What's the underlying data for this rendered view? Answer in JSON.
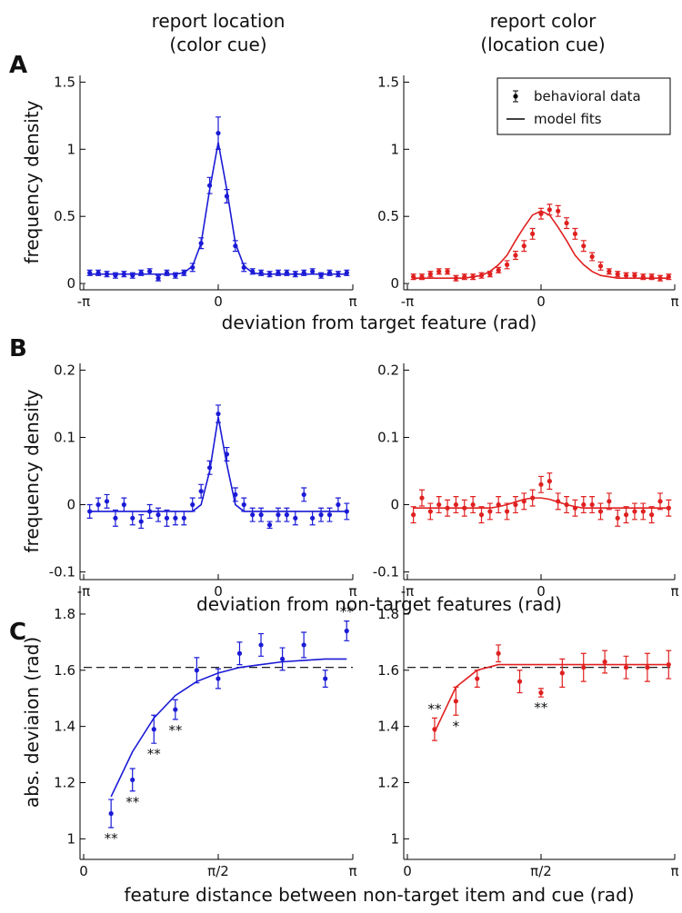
{
  "figure": {
    "column_titles": [
      [
        "report location",
        "(color cue)"
      ],
      [
        "report color",
        "(location cue)"
      ]
    ],
    "rows": [
      {
        "label": "A",
        "xlabel": "deviation from target feature (rad)"
      },
      {
        "label": "B",
        "xlabel": "deviation from non-target features (rad)"
      },
      {
        "label": "C",
        "xlabel": "feature distance between non-target item and cue (rad)"
      }
    ]
  },
  "chart_data": [
    {
      "type": "errorbar",
      "ylabel": "frequency density",
      "x": [
        -3.0,
        -2.8,
        -2.6,
        -2.4,
        -2.2,
        -2.0,
        -1.8,
        -1.6,
        -1.4,
        -1.2,
        -1.0,
        -0.8,
        -0.6,
        -0.4,
        -0.2,
        0,
        0.2,
        0.4,
        0.6,
        0.8,
        1.0,
        1.2,
        1.4,
        1.6,
        1.8,
        2.0,
        2.2,
        2.4,
        2.6,
        2.8,
        3.0
      ],
      "xlim": [
        -3.14159,
        3.14159
      ],
      "xticks": [
        {
          "value": -3.14159,
          "label": "-π"
        },
        0,
        {
          "value": 3.14159,
          "label": "π"
        }
      ],
      "ylim": [
        -0.04,
        1.55
      ],
      "yticks": [
        0,
        0.5,
        1,
        1.5
      ],
      "series": [
        {
          "name": "behavioral data",
          "color": "#1a1ad6",
          "values": [
            0.08,
            0.08,
            0.07,
            0.06,
            0.07,
            0.06,
            0.08,
            0.09,
            0.04,
            0.08,
            0.06,
            0.08,
            0.12,
            0.3,
            0.73,
            1.12,
            0.65,
            0.28,
            0.12,
            0.09,
            0.08,
            0.07,
            0.08,
            0.08,
            0.07,
            0.08,
            0.09,
            0.06,
            0.08,
            0.07,
            0.08
          ],
          "errors": [
            0.02,
            0.02,
            0.02,
            0.02,
            0.02,
            0.02,
            0.02,
            0.02,
            0.02,
            0.02,
            0.02,
            0.02,
            0.03,
            0.04,
            0.06,
            0.12,
            0.05,
            0.04,
            0.03,
            0.02,
            0.02,
            0.02,
            0.02,
            0.02,
            0.02,
            0.02,
            0.02,
            0.02,
            0.02,
            0.02,
            0.02
          ]
        },
        {
          "name": "model fits",
          "color": "#1a1ad6",
          "values": [
            0.07,
            0.07,
            0.07,
            0.07,
            0.07,
            0.07,
            0.07,
            0.07,
            0.07,
            0.07,
            0.07,
            0.08,
            0.13,
            0.3,
            0.7,
            1.05,
            0.7,
            0.3,
            0.13,
            0.08,
            0.07,
            0.07,
            0.07,
            0.07,
            0.07,
            0.07,
            0.07,
            0.07,
            0.07,
            0.07,
            0.07
          ]
        }
      ]
    },
    {
      "type": "errorbar",
      "legend": "upper right",
      "x": [
        -3.0,
        -2.8,
        -2.6,
        -2.4,
        -2.2,
        -2.0,
        -1.8,
        -1.6,
        -1.4,
        -1.2,
        -1.0,
        -0.8,
        -0.6,
        -0.4,
        -0.2,
        0,
        0.2,
        0.4,
        0.6,
        0.8,
        1.0,
        1.2,
        1.4,
        1.6,
        1.8,
        2.0,
        2.2,
        2.4,
        2.6,
        2.8,
        3.0
      ],
      "xlim": [
        -3.14159,
        3.14159
      ],
      "xticks": [
        {
          "value": -3.14159,
          "label": "-π"
        },
        0,
        {
          "value": 3.14159,
          "label": "π"
        }
      ],
      "ylim": [
        -0.04,
        1.55
      ],
      "yticks": [
        0,
        0.5,
        1,
        1.5
      ],
      "series": [
        {
          "name": "behavioral data",
          "color": "#e02020",
          "values": [
            0.05,
            0.05,
            0.07,
            0.09,
            0.09,
            0.04,
            0.05,
            0.05,
            0.06,
            0.07,
            0.1,
            0.14,
            0.21,
            0.28,
            0.37,
            0.52,
            0.55,
            0.54,
            0.45,
            0.37,
            0.28,
            0.2,
            0.13,
            0.09,
            0.07,
            0.06,
            0.06,
            0.05,
            0.05,
            0.04,
            0.05
          ],
          "errors": [
            0.02,
            0.02,
            0.02,
            0.02,
            0.02,
            0.02,
            0.02,
            0.02,
            0.02,
            0.02,
            0.02,
            0.03,
            0.03,
            0.04,
            0.04,
            0.04,
            0.04,
            0.04,
            0.04,
            0.04,
            0.04,
            0.03,
            0.03,
            0.02,
            0.02,
            0.02,
            0.02,
            0.02,
            0.02,
            0.02,
            0.02
          ]
        },
        {
          "name": "model fits",
          "color": "#e02020",
          "values": [
            0.04,
            0.04,
            0.04,
            0.04,
            0.04,
            0.04,
            0.04,
            0.05,
            0.06,
            0.09,
            0.14,
            0.21,
            0.32,
            0.42,
            0.51,
            0.54,
            0.51,
            0.42,
            0.32,
            0.21,
            0.14,
            0.09,
            0.06,
            0.05,
            0.04,
            0.04,
            0.04,
            0.04,
            0.04,
            0.04,
            0.04
          ]
        }
      ]
    },
    {
      "type": "errorbar",
      "ylabel": "frequency density",
      "x": [
        -3.0,
        -2.8,
        -2.6,
        -2.4,
        -2.2,
        -2.0,
        -1.8,
        -1.6,
        -1.4,
        -1.2,
        -1.0,
        -0.8,
        -0.6,
        -0.4,
        -0.2,
        0,
        0.2,
        0.4,
        0.6,
        0.8,
        1.0,
        1.2,
        1.4,
        1.6,
        1.8,
        2.0,
        2.2,
        2.4,
        2.6,
        2.8,
        3.0
      ],
      "xlim": [
        -3.14159,
        3.14159
      ],
      "xticks": [
        {
          "value": -3.14159,
          "label": "-π"
        },
        0,
        {
          "value": 3.14159,
          "label": "π"
        }
      ],
      "ylim": [
        -0.11,
        0.21
      ],
      "yticks": [
        -0.1,
        0,
        0.1,
        0.2
      ],
      "series": [
        {
          "name": "behavioral data",
          "color": "#1a1ad6",
          "values": [
            -0.01,
            0.0,
            0.005,
            -0.02,
            0.0,
            -0.02,
            -0.025,
            -0.01,
            -0.015,
            -0.02,
            -0.02,
            -0.02,
            0.0,
            0.02,
            0.055,
            0.135,
            0.075,
            0.015,
            0.0,
            -0.015,
            -0.015,
            -0.03,
            -0.015,
            -0.015,
            -0.02,
            0.015,
            -0.02,
            -0.015,
            -0.015,
            0.0,
            -0.01
          ],
          "errors": [
            0.01,
            0.01,
            0.01,
            0.012,
            0.01,
            0.01,
            0.01,
            0.01,
            0.01,
            0.012,
            0.01,
            0.01,
            0.01,
            0.01,
            0.01,
            0.013,
            0.01,
            0.01,
            0.01,
            0.01,
            0.01,
            0.005,
            0.01,
            0.01,
            0.01,
            0.01,
            0.01,
            0.01,
            0.01,
            0.01,
            0.012
          ]
        },
        {
          "name": "model fits",
          "color": "#1a1ad6",
          "values": [
            -0.01,
            -0.01,
            -0.01,
            -0.01,
            -0.01,
            -0.01,
            -0.01,
            -0.01,
            -0.01,
            -0.01,
            -0.01,
            -0.01,
            -0.01,
            0.0,
            0.05,
            0.13,
            0.06,
            0.0,
            -0.01,
            -0.01,
            -0.01,
            -0.01,
            -0.01,
            -0.01,
            -0.01,
            -0.01,
            -0.01,
            -0.01,
            -0.01,
            -0.01,
            -0.01
          ]
        }
      ]
    },
    {
      "type": "errorbar",
      "x": [
        -3.0,
        -2.8,
        -2.6,
        -2.4,
        -2.2,
        -2.0,
        -1.8,
        -1.6,
        -1.4,
        -1.2,
        -1.0,
        -0.8,
        -0.6,
        -0.4,
        -0.2,
        0,
        0.2,
        0.4,
        0.6,
        0.8,
        1.0,
        1.2,
        1.4,
        1.6,
        1.8,
        2.0,
        2.2,
        2.4,
        2.6,
        2.8,
        3.0
      ],
      "xlim": [
        -3.14159,
        3.14159
      ],
      "xticks": [
        {
          "value": -3.14159,
          "label": "-π"
        },
        0,
        {
          "value": 3.14159,
          "label": "π"
        }
      ],
      "ylim": [
        -0.11,
        0.21
      ],
      "yticks": [
        -0.1,
        0,
        0.1,
        0.2
      ],
      "series": [
        {
          "name": "behavioral data",
          "color": "#e02020",
          "values": [
            -0.015,
            0.01,
            -0.01,
            0.0,
            -0.005,
            0.0,
            -0.005,
            0.0,
            -0.015,
            -0.01,
            0.0,
            -0.01,
            0.0,
            0.005,
            0.01,
            0.03,
            0.035,
            0.005,
            0.0,
            -0.005,
            0.0,
            0.0,
            -0.01,
            0.005,
            -0.02,
            -0.015,
            -0.01,
            -0.01,
            -0.015,
            0.005,
            -0.005
          ],
          "errors": [
            0.012,
            0.012,
            0.012,
            0.012,
            0.012,
            0.012,
            0.012,
            0.012,
            0.012,
            0.012,
            0.012,
            0.012,
            0.012,
            0.012,
            0.012,
            0.012,
            0.012,
            0.012,
            0.012,
            0.012,
            0.012,
            0.012,
            0.012,
            0.012,
            0.012,
            0.012,
            0.012,
            0.012,
            0.012,
            0.012,
            0.012
          ]
        },
        {
          "name": "model fits",
          "color": "#e02020",
          "values": [
            -0.005,
            -0.005,
            -0.005,
            -0.005,
            -0.005,
            -0.005,
            -0.005,
            -0.005,
            -0.005,
            -0.005,
            -0.003,
            0.0,
            0.004,
            0.008,
            0.01,
            0.01,
            0.008,
            0.004,
            0.0,
            -0.003,
            -0.005,
            -0.005,
            -0.005,
            -0.005,
            -0.005,
            -0.005,
            -0.005,
            -0.005,
            -0.005,
            -0.005,
            -0.005
          ]
        }
      ]
    },
    {
      "type": "errorbar",
      "ylabel": "abs. deviaion (rad)",
      "x": [
        0.32,
        0.57,
        0.82,
        1.07,
        1.32,
        1.57,
        1.82,
        2.07,
        2.32,
        2.57,
        2.82,
        3.07
      ],
      "xlim": [
        0,
        3.14159
      ],
      "xticks": [
        0,
        {
          "value": 1.5708,
          "label": "π/2"
        },
        {
          "value": 3.14159,
          "label": "π"
        }
      ],
      "ylim": [
        0.93,
        1.9
      ],
      "yticks": [
        1,
        1.2,
        1.4,
        1.6,
        1.8
      ],
      "reference_line": 1.61,
      "significance": [
        "**",
        "**",
        "**",
        "**",
        null,
        null,
        null,
        null,
        null,
        null,
        null,
        "**"
      ],
      "series": [
        {
          "name": "behavioral data",
          "color": "#1a1ad6",
          "values": [
            1.09,
            1.21,
            1.39,
            1.46,
            1.6,
            1.57,
            1.66,
            1.69,
            1.64,
            1.69,
            1.57,
            1.74
          ],
          "errors": [
            0.05,
            0.04,
            0.05,
            0.035,
            0.045,
            0.035,
            0.04,
            0.04,
            0.04,
            0.045,
            0.03,
            0.035
          ]
        },
        {
          "name": "model fits",
          "color": "#1a1ad6",
          "values": [
            1.15,
            1.31,
            1.43,
            1.51,
            1.56,
            1.59,
            1.61,
            1.62,
            1.63,
            1.635,
            1.64,
            1.64
          ]
        }
      ]
    },
    {
      "type": "errorbar",
      "x": [
        0.32,
        0.57,
        0.82,
        1.07,
        1.32,
        1.57,
        1.82,
        2.07,
        2.32,
        2.57,
        2.82,
        3.07
      ],
      "xlim": [
        0,
        3.14159
      ],
      "xticks": [
        0,
        {
          "value": 1.5708,
          "label": "π/2"
        },
        {
          "value": 3.14159,
          "label": "π"
        }
      ],
      "ylim": [
        0.93,
        1.9
      ],
      "yticks": [
        1,
        1.2,
        1.4,
        1.6,
        1.8
      ],
      "reference_line": 1.61,
      "significance": [
        "**",
        "*",
        null,
        null,
        null,
        "**",
        null,
        null,
        null,
        null,
        null,
        null
      ],
      "series": [
        {
          "name": "behavioral data",
          "color": "#e02020",
          "values": [
            1.39,
            1.49,
            1.57,
            1.66,
            1.56,
            1.52,
            1.59,
            1.61,
            1.63,
            1.61,
            1.61,
            1.62
          ],
          "errors": [
            0.04,
            0.05,
            0.03,
            0.03,
            0.04,
            0.015,
            0.05,
            0.05,
            0.04,
            0.04,
            0.05,
            0.05
          ]
        },
        {
          "name": "model fits",
          "color": "#e02020",
          "values": [
            1.38,
            1.54,
            1.6,
            1.62,
            1.62,
            1.62,
            1.62,
            1.62,
            1.62,
            1.62,
            1.62,
            1.62
          ]
        }
      ]
    }
  ]
}
